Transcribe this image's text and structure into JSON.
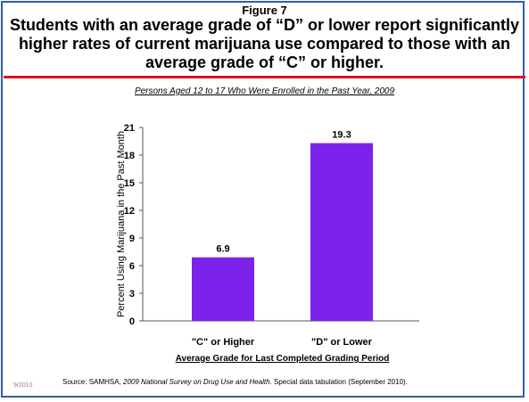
{
  "figure_label": "Figure 7",
  "headline": "Students with an average grade of “D” or lower report significantly higher rates of current marijuana  use compared to those with an average grade of “C” or higher.",
  "colors": {
    "bar": "#7b22ea",
    "rule": "#d9161c",
    "frame": "#2f5fa8"
  },
  "source": {
    "prefix": "Source:  SAMHSA, ",
    "survey": "2009 National Survey on Drug Use and Health",
    "suffix": ". Special data tabulation (September  2010)."
  },
  "date_stamp": "9/2010",
  "chart_data": {
    "type": "bar",
    "title": "Persons Aged 12 to 17 Who Were Enrolled in the Past Year, 2009",
    "categories": [
      "\"C\" or Higher",
      "\"D\" or Lower"
    ],
    "values": [
      6.9,
      19.3
    ],
    "data_labels": [
      "6.9",
      "19.3"
    ],
    "xlabel": "Average Grade for Last Completed Grading Period",
    "ylabel": "Percent Using Marijuana in the Past Month",
    "ylim": [
      0,
      21
    ],
    "yticks": [
      0,
      3,
      6,
      9,
      12,
      15,
      18,
      21
    ],
    "grid": false
  }
}
